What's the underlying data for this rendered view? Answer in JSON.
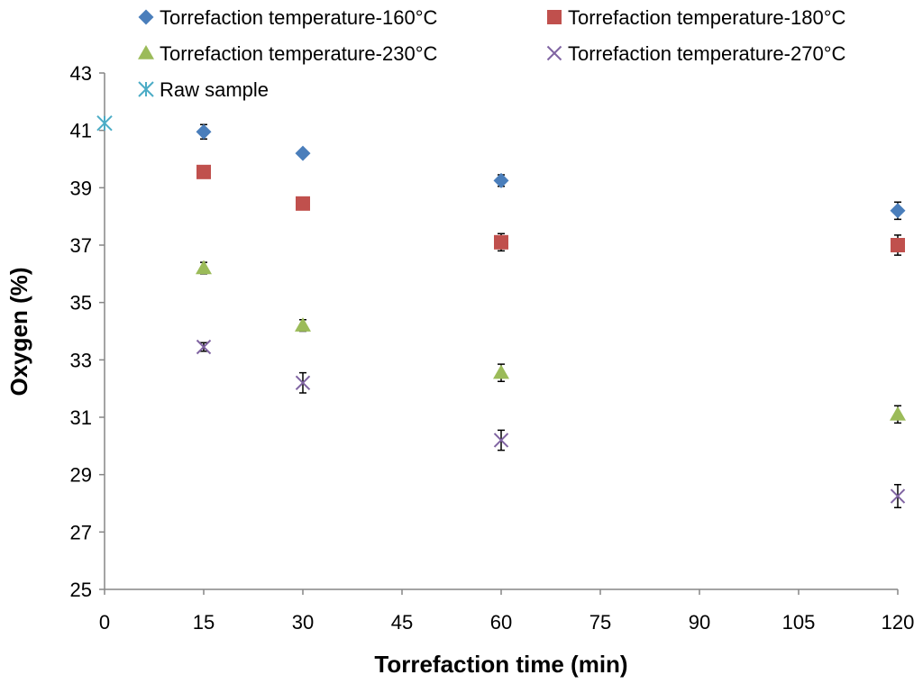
{
  "chart_data": {
    "type": "scatter",
    "title": "",
    "xlabel": "Torrefaction time (min)",
    "ylabel": "Oxygen (%)",
    "xlim": [
      0,
      120
    ],
    "ylim": [
      25,
      43
    ],
    "xticks": [
      0,
      15,
      30,
      45,
      60,
      75,
      90,
      105,
      120
    ],
    "yticks": [
      25,
      27,
      29,
      31,
      33,
      35,
      37,
      39,
      41,
      43
    ],
    "grid": false,
    "legend_position": "top",
    "series": [
      {
        "name": "Torrefaction temperature-160°C",
        "marker": "diamond",
        "color": "#4a7ebb",
        "x": [
          15,
          30,
          60,
          120
        ],
        "y": [
          40.95,
          40.2,
          39.25,
          38.2
        ],
        "error": [
          0.25,
          0.1,
          0.2,
          0.3
        ]
      },
      {
        "name": "Torrefaction temperature-180°C",
        "marker": "square",
        "color": "#c0504d",
        "x": [
          15,
          30,
          60,
          120
        ],
        "y": [
          39.55,
          38.45,
          37.1,
          37.0
        ],
        "error": [
          0.05,
          0.05,
          0.3,
          0.35
        ]
      },
      {
        "name": "Torrefaction temperature-230°C",
        "marker": "triangle",
        "color": "#9bbb59",
        "x": [
          15,
          30,
          60,
          120
        ],
        "y": [
          36.2,
          34.2,
          32.55,
          31.1
        ],
        "error": [
          0.2,
          0.2,
          0.3,
          0.3
        ]
      },
      {
        "name": "Torrefaction temperature-270°C",
        "marker": "x",
        "color": "#8064a2",
        "x": [
          15,
          30,
          60,
          120
        ],
        "y": [
          33.45,
          32.2,
          30.2,
          28.25
        ],
        "error": [
          0.15,
          0.35,
          0.35,
          0.4
        ]
      },
      {
        "name": "Raw sample",
        "marker": "star",
        "color": "#4bacc6",
        "x": [
          0
        ],
        "y": [
          41.25
        ],
        "error": [
          0
        ]
      }
    ]
  }
}
